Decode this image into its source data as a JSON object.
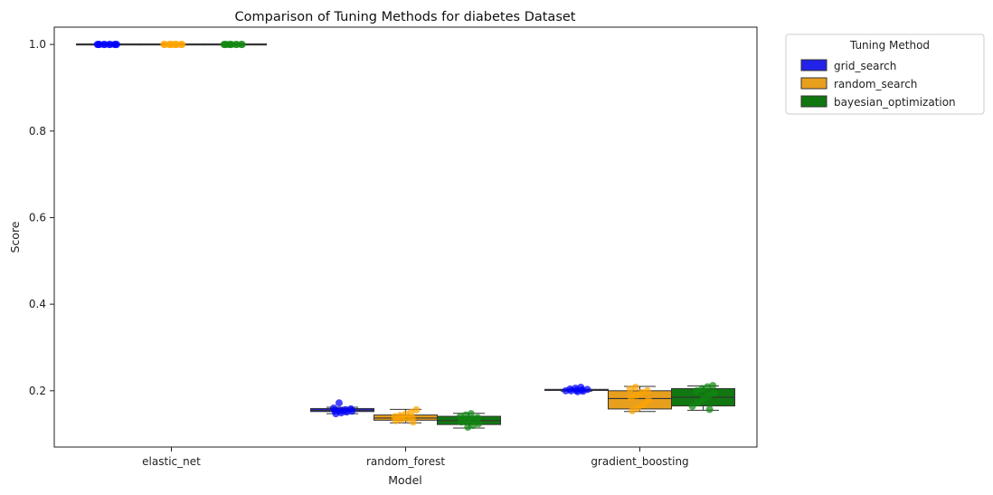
{
  "chart_data": {
    "type": "box",
    "title": "Comparison of Tuning Methods for diabetes Dataset",
    "xlabel": "Model",
    "ylabel": "Score",
    "categories": [
      "elastic_net",
      "random_forest",
      "gradient_boosting"
    ],
    "ylim": [
      0.07,
      1.04
    ],
    "yticks": [
      0.2,
      0.4,
      0.6,
      0.8,
      1.0
    ],
    "ytick_labels": [
      "0.2",
      "0.4",
      "0.6",
      "0.8",
      "1.0"
    ],
    "grid": false,
    "legend": {
      "title": "Tuning Method",
      "placement": "outside-top-right",
      "entries": [
        "grid_search",
        "random_search",
        "bayesian_optimization"
      ]
    },
    "series": [
      {
        "name": "grid_search",
        "box_color": "#2222e8",
        "point_color": "#0000ff",
        "boxes": [
          {
            "whisker_low": 1.0,
            "q1": 1.0,
            "median": 1.0,
            "q3": 1.0,
            "whisker_high": 1.0,
            "points": [
              1.0,
              1.0,
              1.0,
              1.0,
              1.0,
              1.0,
              1.0,
              1.0,
              1.0,
              1.0
            ]
          },
          {
            "whisker_low": 0.147,
            "q1": 0.152,
            "median": 0.155,
            "q3": 0.159,
            "whisker_high": 0.162,
            "points": [
              0.172,
              0.16,
              0.158,
              0.156,
              0.155,
              0.154,
              0.153,
              0.151,
              0.149,
              0.147
            ]
          },
          {
            "whisker_low": 0.199,
            "q1": 0.2,
            "median": 0.201,
            "q3": 0.202,
            "whisker_high": 0.203,
            "points": [
              0.208,
              0.206,
              0.204,
              0.203,
              0.202,
              0.201,
              0.2,
              0.2,
              0.199,
              0.198
            ]
          }
        ]
      },
      {
        "name": "random_search",
        "box_color": "#e89f1d",
        "point_color": "#ffa500",
        "boxes": [
          {
            "whisker_low": 1.0,
            "q1": 1.0,
            "median": 1.0,
            "q3": 1.0,
            "whisker_high": 1.0,
            "points": [
              1.0,
              1.0,
              1.0,
              1.0,
              1.0,
              1.0,
              1.0,
              1.0,
              1.0,
              1.0
            ]
          },
          {
            "whisker_low": 0.126,
            "q1": 0.132,
            "median": 0.137,
            "q3": 0.144,
            "whisker_high": 0.157,
            "points": [
              0.156,
              0.15,
              0.146,
              0.143,
              0.14,
              0.138,
              0.136,
              0.134,
              0.131,
              0.128
            ]
          },
          {
            "whisker_low": 0.152,
            "q1": 0.158,
            "median": 0.182,
            "q3": 0.2,
            "whisker_high": 0.21,
            "points": [
              0.208,
              0.204,
              0.2,
              0.196,
              0.19,
              0.184,
              0.178,
              0.168,
              0.16,
              0.154
            ]
          }
        ]
      },
      {
        "name": "bayesian_optimization",
        "box_color": "#117711",
        "point_color": "#118811",
        "boxes": [
          {
            "whisker_low": 1.0,
            "q1": 1.0,
            "median": 1.0,
            "q3": 1.0,
            "whisker_high": 1.0,
            "points": [
              1.0,
              1.0,
              1.0,
              1.0,
              1.0,
              1.0,
              1.0,
              1.0,
              1.0,
              1.0
            ]
          },
          {
            "whisker_low": 0.114,
            "q1": 0.122,
            "median": 0.131,
            "q3": 0.141,
            "whisker_high": 0.148,
            "points": [
              0.147,
              0.144,
              0.141,
              0.138,
              0.135,
              0.131,
              0.128,
              0.124,
              0.12,
              0.116
            ]
          },
          {
            "whisker_low": 0.155,
            "q1": 0.165,
            "median": 0.185,
            "q3": 0.205,
            "whisker_high": 0.211,
            "points": [
              0.212,
              0.209,
              0.205,
              0.2,
              0.194,
              0.188,
              0.18,
              0.172,
              0.164,
              0.157
            ]
          }
        ]
      }
    ]
  }
}
